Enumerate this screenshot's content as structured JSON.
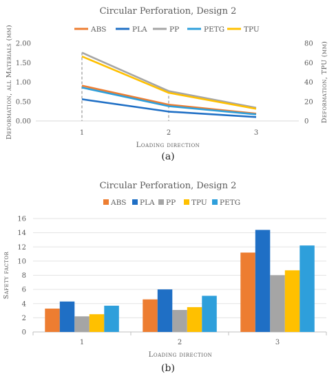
{
  "figures": [
    {
      "caption": "(a)",
      "chart_data": {
        "type": "line",
        "title": "Circular Perforation, Design 2",
        "xlabel": "Loading direction",
        "ylabel": "Deformation, all Materials (mm)",
        "y2label": "Deformation, TPU (mm)",
        "categories": [
          "1",
          "2",
          "3"
        ],
        "ylim": [
          0,
          2
        ],
        "y2lim": [
          0,
          80
        ],
        "yticks": [
          "0.00",
          "0.50",
          "1.00",
          "1.50",
          "2.00"
        ],
        "y2ticks": [
          "0",
          "20",
          "40",
          "60",
          "80"
        ],
        "legend_position": "top",
        "grid": false,
        "series": [
          {
            "name": "ABS",
            "color": "#ED7D31",
            "axis": "left",
            "values": [
              0.91,
              0.42,
              0.19
            ]
          },
          {
            "name": "PLA",
            "color": "#1F6FC5",
            "axis": "left",
            "values": [
              0.56,
              0.24,
              0.1
            ]
          },
          {
            "name": "PP",
            "color": "#A5A5A5",
            "axis": "left",
            "values": [
              1.76,
              0.77,
              0.34
            ]
          },
          {
            "name": "PETG",
            "color": "#2E9FDB",
            "axis": "left",
            "values": [
              0.86,
              0.38,
              0.17
            ]
          },
          {
            "name": "TPU",
            "color": "#FFC000",
            "axis": "right",
            "values": [
              66.5,
              29.0,
              12.5
            ]
          }
        ]
      }
    },
    {
      "caption": "(b)",
      "chart_data": {
        "type": "bar",
        "title": "Circular Perforation, Design 2",
        "xlabel": "Loading direction",
        "ylabel": "Safety factor",
        "categories": [
          "1",
          "2",
          "3"
        ],
        "ylim": [
          0,
          16
        ],
        "yticks": [
          "0",
          "2",
          "4",
          "6",
          "8",
          "10",
          "12",
          "14",
          "16"
        ],
        "legend_position": "top",
        "grid": true,
        "series": [
          {
            "name": "ABS",
            "color": "#ED7D31",
            "values": [
              3.3,
              4.6,
              11.2
            ]
          },
          {
            "name": "PLA",
            "color": "#1F6FC5",
            "values": [
              4.3,
              6.0,
              14.4
            ]
          },
          {
            "name": "PP",
            "color": "#A5A5A5",
            "values": [
              2.2,
              3.1,
              8.0
            ]
          },
          {
            "name": "TPU",
            "color": "#FFC000",
            "values": [
              2.5,
              3.5,
              8.7
            ]
          },
          {
            "name": "PETG",
            "color": "#2E9FDB",
            "values": [
              3.7,
              5.1,
              12.2
            ]
          }
        ]
      }
    }
  ]
}
